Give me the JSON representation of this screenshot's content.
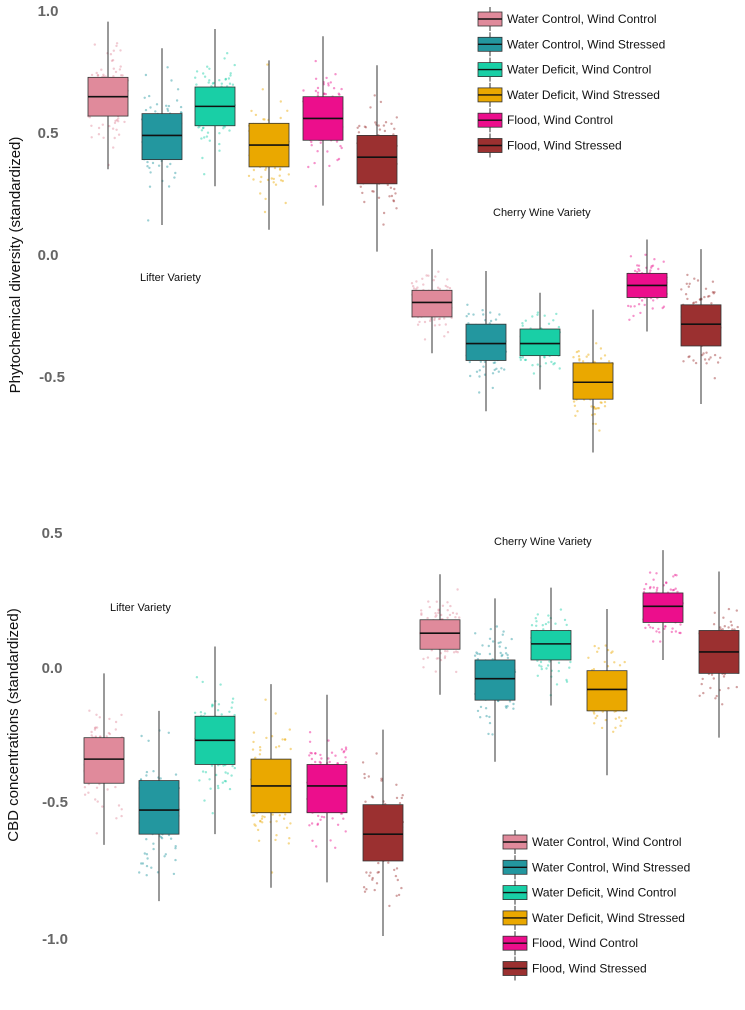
{
  "chart_data": [
    {
      "type": "box",
      "ylabel": "Phytochemical diversity (standardized)",
      "ylim": [
        -0.85,
        1.0
      ],
      "yticks": [
        "1.0",
        "0.5",
        "0.0",
        "-0.5"
      ],
      "legend_position": "top-right",
      "groups": [
        {
          "label": "Lifter Variety",
          "boxes": [
            {
              "treatment": "Water Control, Wind Control",
              "lower": 0.35,
              "q1": 0.57,
              "median": 0.65,
              "q3": 0.73,
              "upper": 0.96
            },
            {
              "treatment": "Water Control, Wind Stressed",
              "lower": 0.12,
              "q1": 0.39,
              "median": 0.49,
              "q3": 0.58,
              "upper": 0.85
            },
            {
              "treatment": "Water Deficit, Wind Control",
              "lower": 0.28,
              "q1": 0.53,
              "median": 0.61,
              "q3": 0.69,
              "upper": 0.93
            },
            {
              "treatment": "Water Deficit, Wind Stressed",
              "lower": 0.1,
              "q1": 0.36,
              "median": 0.45,
              "q3": 0.54,
              "upper": 0.8
            },
            {
              "treatment": "Flood, Wind Control",
              "lower": 0.2,
              "q1": 0.47,
              "median": 0.56,
              "q3": 0.65,
              "upper": 0.9
            },
            {
              "treatment": "Flood, Wind Stressed",
              "lower": 0.01,
              "q1": 0.29,
              "median": 0.4,
              "q3": 0.49,
              "upper": 0.78
            }
          ]
        },
        {
          "label": "Cherry Wine Variety",
          "boxes": [
            {
              "treatment": "Water Control, Wind Control",
              "lower": -0.41,
              "q1": -0.26,
              "median": -0.2,
              "q3": -0.15,
              "upper": 0.02
            },
            {
              "treatment": "Water Control, Wind Stressed",
              "lower": -0.65,
              "q1": -0.44,
              "median": -0.37,
              "q3": -0.29,
              "upper": -0.07
            },
            {
              "treatment": "Water Deficit, Wind Control",
              "lower": -0.56,
              "q1": -0.42,
              "median": -0.37,
              "q3": -0.31,
              "upper": -0.16
            },
            {
              "treatment": "Water Deficit, Wind Stressed",
              "lower": -0.82,
              "q1": -0.6,
              "median": -0.53,
              "q3": -0.45,
              "upper": -0.23
            },
            {
              "treatment": "Flood, Wind Control",
              "lower": -0.32,
              "q1": -0.18,
              "median": -0.13,
              "q3": -0.08,
              "upper": 0.06
            },
            {
              "treatment": "Flood, Wind Stressed",
              "lower": -0.62,
              "q1": -0.38,
              "median": -0.29,
              "q3": -0.21,
              "upper": 0.02
            }
          ]
        }
      ]
    },
    {
      "type": "box",
      "ylabel": "CBD concentrations (standardized)",
      "ylim": [
        -1.12,
        0.5
      ],
      "yticks": [
        "0.5",
        "0.0",
        "-0.5",
        "-1.0"
      ],
      "legend_position": "bottom-right",
      "groups": [
        {
          "label": "Lifter Variety",
          "boxes": [
            {
              "treatment": "Water Control, Wind Control",
              "lower": -0.66,
              "q1": -0.43,
              "median": -0.34,
              "q3": -0.26,
              "upper": -0.02
            },
            {
              "treatment": "Water Control, Wind Stressed",
              "lower": -0.87,
              "q1": -0.62,
              "median": -0.53,
              "q3": -0.42,
              "upper": -0.16
            },
            {
              "treatment": "Water Deficit, Wind Control",
              "lower": -0.62,
              "q1": -0.36,
              "median": -0.27,
              "q3": -0.18,
              "upper": 0.08
            },
            {
              "treatment": "Water Deficit, Wind Stressed",
              "lower": -0.82,
              "q1": -0.54,
              "median": -0.44,
              "q3": -0.34,
              "upper": -0.06
            },
            {
              "treatment": "Flood, Wind Control",
              "lower": -0.8,
              "q1": -0.54,
              "median": -0.44,
              "q3": -0.36,
              "upper": -0.1
            },
            {
              "treatment": "Flood, Wind Stressed",
              "lower": -1.0,
              "q1": -0.72,
              "median": -0.62,
              "q3": -0.51,
              "upper": -0.23
            }
          ]
        },
        {
          "label": "Cherry Wine Variety",
          "boxes": [
            {
              "treatment": "Water Control, Wind Control",
              "lower": -0.1,
              "q1": 0.07,
              "median": 0.13,
              "q3": 0.18,
              "upper": 0.35
            },
            {
              "treatment": "Water Control, Wind Stressed",
              "lower": -0.35,
              "q1": -0.12,
              "median": -0.04,
              "q3": 0.03,
              "upper": 0.26
            },
            {
              "treatment": "Water Deficit, Wind Control",
              "lower": -0.14,
              "q1": 0.03,
              "median": 0.09,
              "q3": 0.14,
              "upper": 0.3
            },
            {
              "treatment": "Water Deficit, Wind Stressed",
              "lower": -0.4,
              "q1": -0.16,
              "median": -0.08,
              "q3": -0.01,
              "upper": 0.22
            },
            {
              "treatment": "Flood, Wind Control",
              "lower": 0.03,
              "q1": 0.17,
              "median": 0.23,
              "q3": 0.28,
              "upper": 0.44
            },
            {
              "treatment": "Flood, Wind Stressed",
              "lower": -0.26,
              "q1": -0.02,
              "median": 0.06,
              "q3": 0.14,
              "upper": 0.36
            }
          ]
        }
      ]
    }
  ],
  "legend": {
    "items": [
      {
        "label": "Water Control, Wind Control",
        "color": "#e08a9b"
      },
      {
        "label": "Water Control, Wind Stressed",
        "color": "#23979f"
      },
      {
        "label": "Water Deficit, Wind Control",
        "color": "#19cfa6"
      },
      {
        "label": "Water Deficit, Wind Stressed",
        "color": "#eaa800"
      },
      {
        "label": "Flood, Wind Control",
        "color": "#ec0e8c"
      },
      {
        "label": "Flood, Wind Stressed",
        "color": "#9b3030"
      }
    ]
  }
}
